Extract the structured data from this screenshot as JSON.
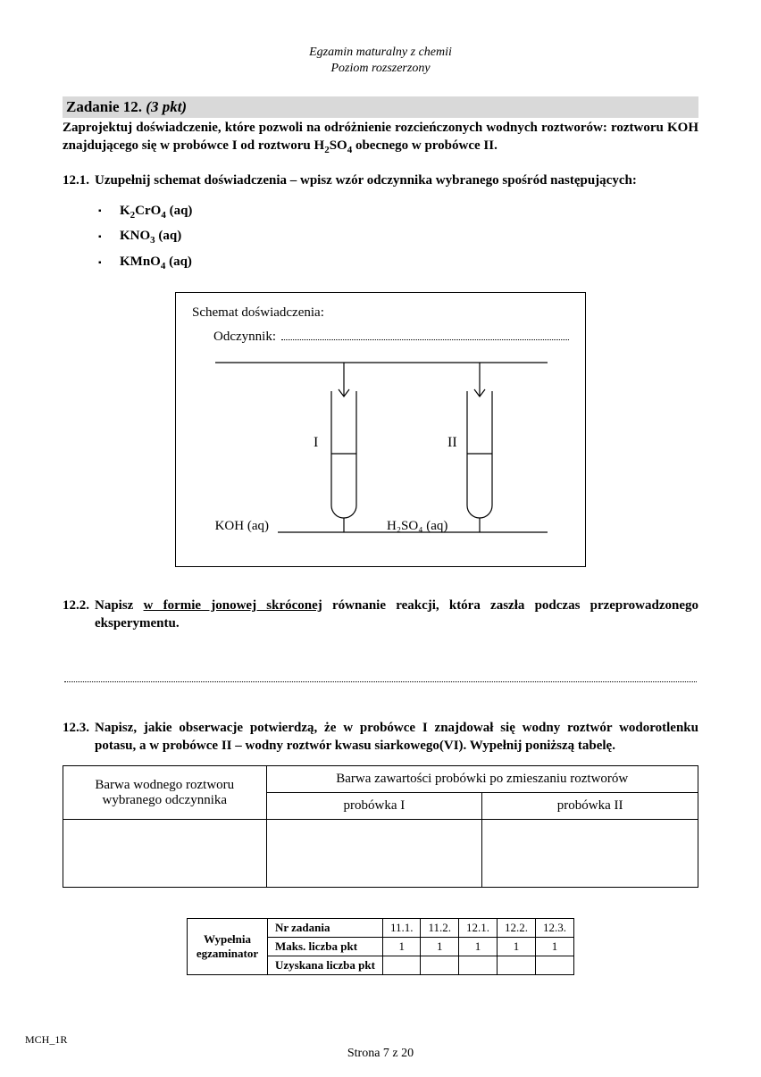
{
  "header": {
    "line1": "Egzamin maturalny z chemii",
    "line2": "Poziom rozszerzony"
  },
  "task": {
    "title": "Zadanie 12.",
    "points": "(3 pkt)",
    "intro_html": "Zaprojektuj doświadczenie, które pozwoli na odróżnienie rozcieńczonych wodnych roztworów: roztworu KOH znajdującego się w probówce I od roztworu H<sub>2</sub>SO<sub>4</sub> obecnego w probówce II."
  },
  "sub1": {
    "num": "12.1.",
    "text": "Uzupełnij schemat doświadczenia – wpisz wzór odczynnika wybranego spośród następujących:",
    "reagents": [
      "K<sub>2</sub>CrO<sub>4</sub> (aq)",
      "KNO<sub>3</sub> (aq)",
      "KMnO<sub>4</sub> (aq)"
    ]
  },
  "diagram": {
    "title": "Schemat doświadczenia:",
    "odcz_label": "Odczynnik:",
    "tube1_roman": "I",
    "tube2_roman": "II",
    "tube1_label": "KOH (aq)",
    "tube2_label_html": "H<sub>2</sub>SO<sub>4</sub> (aq)",
    "line_color": "#000000",
    "line_width": 1.2
  },
  "sub2": {
    "num": "12.2.",
    "text_html": "Napisz <u>w formie jonowej skróconej</u> równanie reakcji, która zaszła podczas przeprowadzonego eksperymentu."
  },
  "sub3": {
    "num": "12.3.",
    "text": "Napisz, jakie obserwacje potwierdzą, że w probówce I znajdował się wodny roztwór wodorotlenku potasu, a w probówce II – wodny roztwór kwasu siarkowego(VI). Wypełnij poniższą tabelę."
  },
  "obs_table": {
    "col_left": "Barwa wodnego roztworu wybranego odczynnika",
    "col_right_top": "Barwa zawartości probówki po zmieszaniu roztworów",
    "col_r1": "probówka I",
    "col_r2": "probówka II"
  },
  "score": {
    "side": "Wypełnia egzaminator",
    "row1": "Nr zadania",
    "row2": "Maks. liczba pkt",
    "row3": "Uzyskana liczba pkt",
    "cols": [
      "11.1.",
      "11.2.",
      "12.1.",
      "12.2.",
      "12.3."
    ],
    "max": [
      "1",
      "1",
      "1",
      "1",
      "1"
    ]
  },
  "footer": {
    "code": "MCH_1R",
    "page": "Strona 7 z 20"
  }
}
